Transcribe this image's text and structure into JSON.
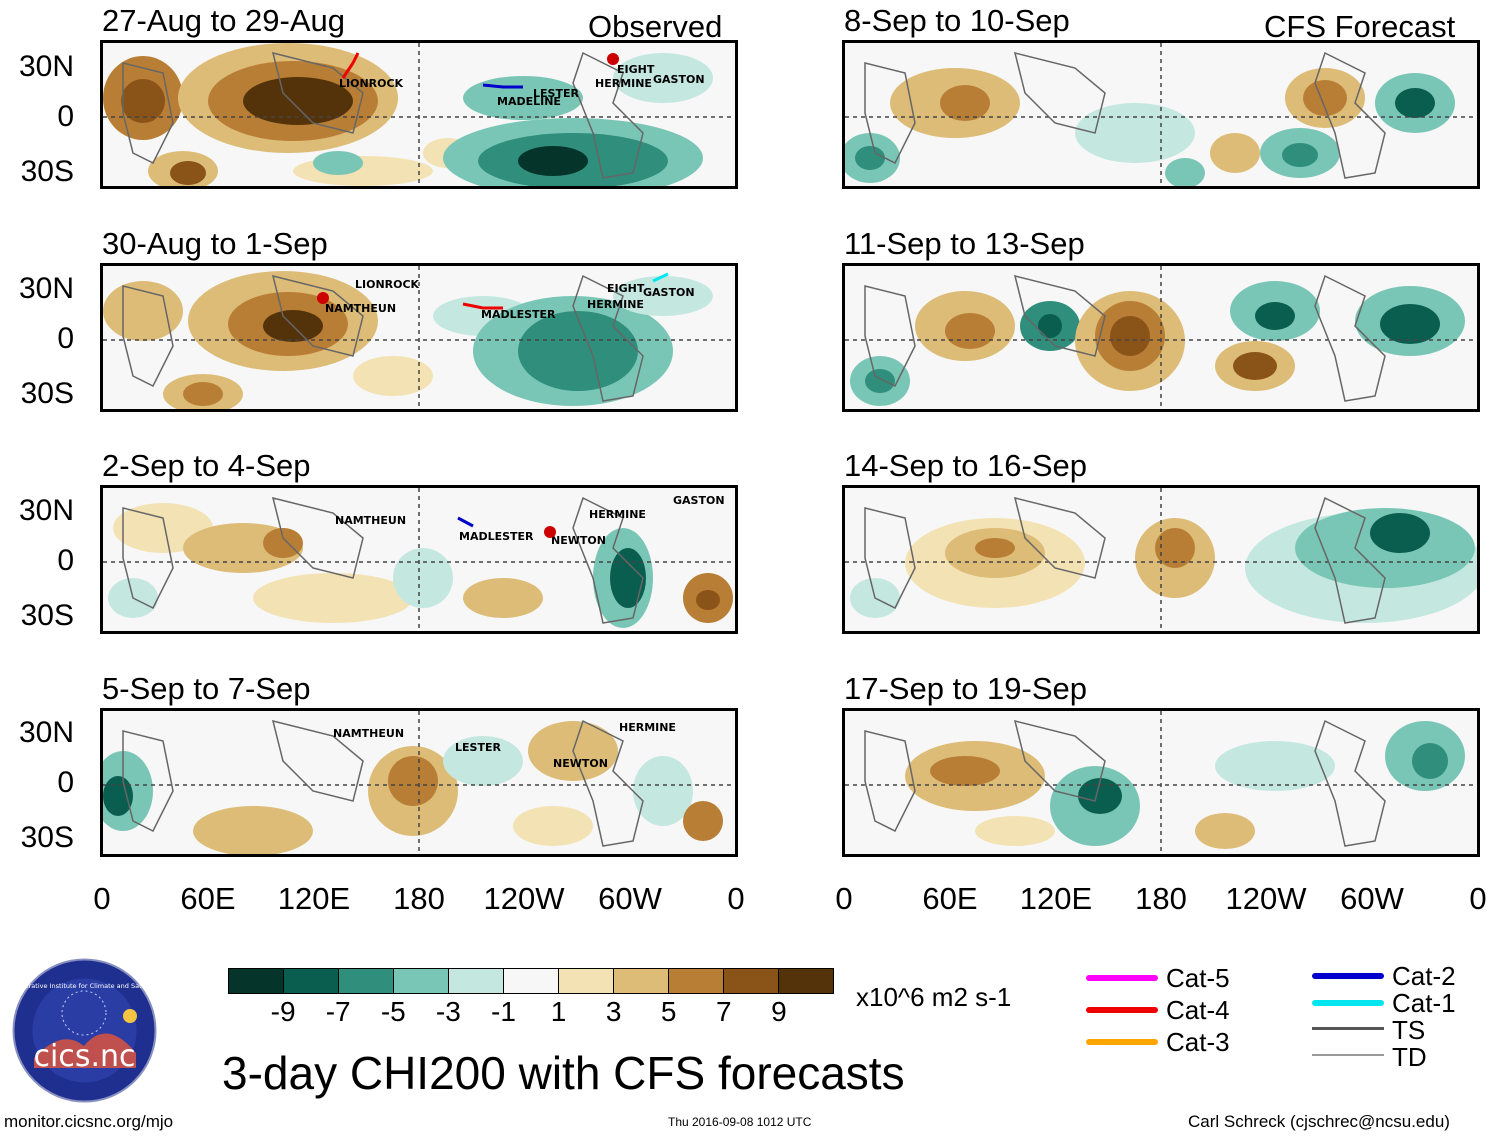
{
  "headers": {
    "left": "Observed",
    "right": "CFS Forecast"
  },
  "panels_left": [
    {
      "title": "27-Aug to 29-Aug",
      "storms": [
        "LIONROCK",
        "MADELINE",
        "LESTER",
        "HERMINE",
        "EIGHT",
        "GASTON"
      ]
    },
    {
      "title": "30-Aug to 1-Sep",
      "storms": [
        "LIONROCK",
        "NAMTHEUN",
        "MADLESTER",
        "EIGHT",
        "GASTON",
        "HERMINE"
      ]
    },
    {
      "title": "2-Sep to 4-Sep",
      "storms": [
        "NAMTHEUN",
        "MADLESTER",
        "NEWTON",
        "HERMINE",
        "GASTON"
      ]
    },
    {
      "title": "5-Sep to 7-Sep",
      "storms": [
        "NAMTHEUN",
        "LESTER",
        "NEWTON",
        "HERMINE"
      ]
    }
  ],
  "panels_right": [
    {
      "title": "8-Sep to 10-Sep"
    },
    {
      "title": "11-Sep to 13-Sep"
    },
    {
      "title": "14-Sep to 16-Sep"
    },
    {
      "title": "17-Sep to 19-Sep"
    }
  ],
  "lat_labels": [
    "30N",
    "0",
    "30S"
  ],
  "lon_labels": [
    "0",
    "60E",
    "120E",
    "180",
    "120W",
    "60W",
    "0"
  ],
  "colorbar": {
    "colors": [
      "#04342a",
      "#0a5e50",
      "#2f8e7c",
      "#7ac6b6",
      "#c4e8e0",
      "#f7f7f7",
      "#f3e2b4",
      "#ddbc77",
      "#b97e35",
      "#8a5317",
      "#54330a"
    ],
    "labels": [
      "-9",
      "-7",
      "-5",
      "-3",
      "-1",
      "1",
      "3",
      "5",
      "7",
      "9"
    ],
    "units": "x10^6 m2 s-1"
  },
  "legend": {
    "left": [
      {
        "label": "Cat-5",
        "color": "#ff00ff"
      },
      {
        "label": "Cat-4",
        "color": "#ee0000"
      },
      {
        "label": "Cat-3",
        "color": "#ffa500"
      }
    ],
    "right": [
      {
        "label": "Cat-2",
        "color": "#0000cc"
      },
      {
        "label": "Cat-1",
        "color": "#00e5ee"
      },
      {
        "label": "TS",
        "color": "#555555"
      },
      {
        "label": "TD",
        "color": "#999999"
      }
    ]
  },
  "logo": {
    "text": "cics.nc",
    "ring_text": "Cooperative Institute for Climate and Satellites"
  },
  "main_title": "3-day CHI200 with CFS forecasts",
  "footer": {
    "left": "monitor.cicsnc.org/mjo",
    "center": "Thu 2016-09-08 1012 UTC",
    "right": "Carl Schreck (cjschrec@ncsu.edu)"
  }
}
